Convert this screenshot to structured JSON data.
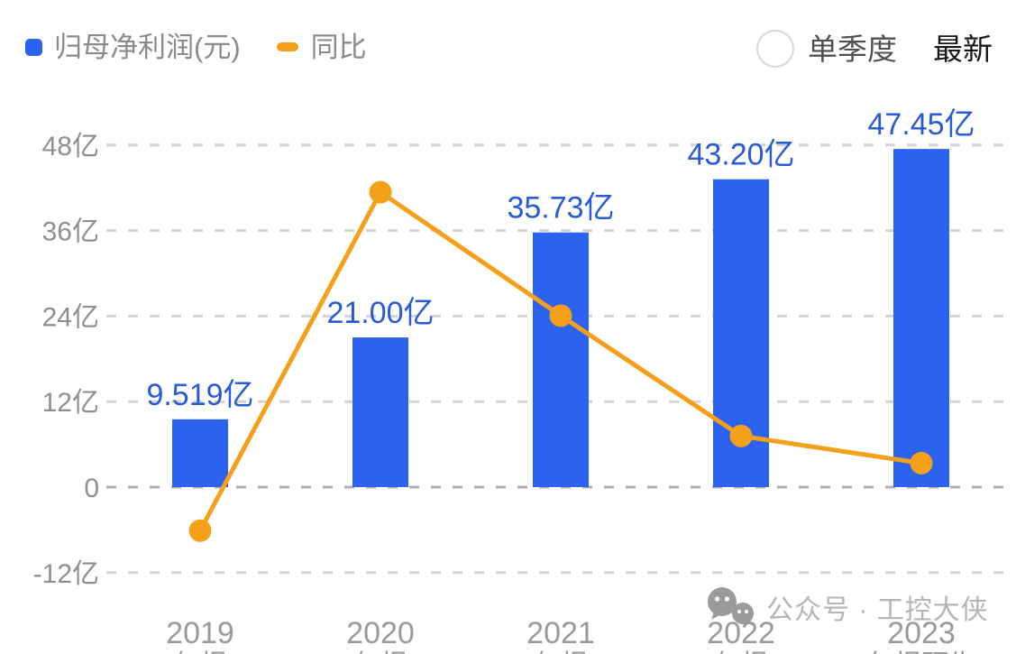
{
  "legend": {
    "series1_label": "归母净利润(元)",
    "series2_label": "同比"
  },
  "controls": {
    "radio_label": "单季度",
    "radio_checked": false,
    "latest_label": "最新"
  },
  "watermark": {
    "icon": "wechat-icon",
    "text": "公众号 · 工控大侠"
  },
  "colors": {
    "bar": "#2c62f0",
    "line": "#f5a01b",
    "value_label_text": "#2a5bd7",
    "axis_text": "#8f8f8f",
    "grid": "#d4d4d4",
    "grid_zero": "#b0b0b0",
    "legend_text": "#8a8a8a",
    "latest_text": "#161616",
    "watermark_text": "#b5b5b5"
  },
  "chart_data": {
    "type": "bar",
    "title": "",
    "legend_position": "top-left",
    "categories": [
      "2019",
      "2020",
      "2021",
      "2022",
      "2023"
    ],
    "category_sub_labels": [
      "年报",
      "年报",
      "年报",
      "年报",
      "年报预告"
    ],
    "series": [
      {
        "name": "归母净利润(元)",
        "kind": "bar",
        "unit": "亿",
        "values": [
          9.519,
          21.0,
          35.73,
          43.2,
          47.45
        ],
        "value_labels": [
          "9.519亿",
          "21.00亿",
          "35.73亿",
          "43.20亿",
          "47.45亿"
        ]
      },
      {
        "name": "同比",
        "kind": "line",
        "unit": "%",
        "values": [
          -17.8,
          120.6,
          70.1,
          20.9,
          9.8
        ]
      }
    ],
    "y_axis": {
      "tick_labels": [
        "48亿",
        "36亿",
        "24亿",
        "12亿",
        "0",
        "-12亿"
      ],
      "tick_values": [
        48,
        36,
        24,
        12,
        0,
        -12
      ],
      "range": [
        -12,
        48
      ],
      "grid": "dashed"
    },
    "right_axis_hidden": true
  }
}
